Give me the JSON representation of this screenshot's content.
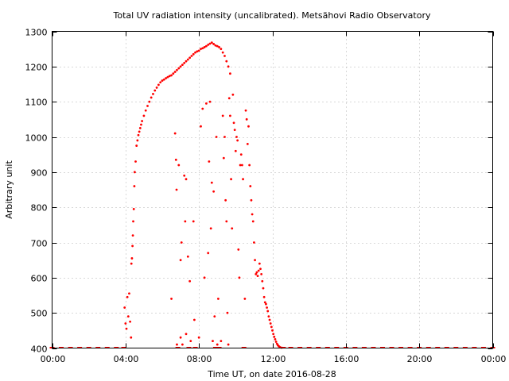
{
  "chart_data": {
    "type": "scatter",
    "title": "Total UV radiation intensity (uncalibrated). Metsähovi Radio Observatory",
    "xlabel": "Time UT, on date 2016-08-28",
    "ylabel": "Arbitrary unit",
    "xlim": [
      0,
      24
    ],
    "ylim": [
      400,
      1300
    ],
    "xticks": [
      0,
      4,
      8,
      12,
      16,
      20,
      24
    ],
    "xtick_labels": [
      "00:00",
      "04:00",
      "08:00",
      "12:00",
      "16:00",
      "20:00",
      "00:00"
    ],
    "yticks": [
      400,
      500,
      600,
      700,
      800,
      900,
      1000,
      1100,
      1200,
      1300
    ],
    "ytick_labels": [
      "400",
      "500",
      "600",
      "700",
      "800",
      "900",
      "1000",
      "1100",
      "1200",
      "1300"
    ],
    "grid": true,
    "color": "#ff0000",
    "x_unit": "hours UT",
    "series": [
      {
        "name": "",
        "points": [
          [
            0.0,
            400
          ],
          [
            0.5,
            400
          ],
          [
            1.0,
            400
          ],
          [
            1.5,
            400
          ],
          [
            2.0,
            400
          ],
          [
            2.5,
            400
          ],
          [
            3.0,
            400
          ],
          [
            3.5,
            400
          ],
          [
            3.9,
            400
          ],
          [
            3.95,
            515
          ],
          [
            4.0,
            470
          ],
          [
            4.05,
            455
          ],
          [
            4.1,
            545
          ],
          [
            4.15,
            490
          ],
          [
            4.2,
            555
          ],
          [
            4.25,
            475
          ],
          [
            4.3,
            430
          ],
          [
            4.32,
            640
          ],
          [
            4.35,
            655
          ],
          [
            4.38,
            690
          ],
          [
            4.4,
            720
          ],
          [
            4.42,
            760
          ],
          [
            4.45,
            795
          ],
          [
            4.48,
            860
          ],
          [
            4.5,
            900
          ],
          [
            4.55,
            930
          ],
          [
            4.6,
            975
          ],
          [
            4.65,
            990
          ],
          [
            4.7,
            1005
          ],
          [
            4.75,
            1015
          ],
          [
            4.8,
            1025
          ],
          [
            4.85,
            1035
          ],
          [
            4.9,
            1045
          ],
          [
            5.0,
            1060
          ],
          [
            5.1,
            1075
          ],
          [
            5.2,
            1088
          ],
          [
            5.3,
            1100
          ],
          [
            5.4,
            1112
          ],
          [
            5.5,
            1122
          ],
          [
            5.6,
            1132
          ],
          [
            5.7,
            1140
          ],
          [
            5.8,
            1148
          ],
          [
            5.9,
            1155
          ],
          [
            6.0,
            1160
          ],
          [
            6.1,
            1163
          ],
          [
            6.2,
            1167
          ],
          [
            6.3,
            1170
          ],
          [
            6.4,
            1173
          ],
          [
            6.5,
            1175
          ],
          [
            6.6,
            1180
          ],
          [
            6.7,
            1185
          ],
          [
            6.8,
            1190
          ],
          [
            6.9,
            1195
          ],
          [
            7.0,
            1200
          ],
          [
            7.1,
            1205
          ],
          [
            7.2,
            1210
          ],
          [
            7.3,
            1215
          ],
          [
            7.4,
            1220
          ],
          [
            7.5,
            1225
          ],
          [
            7.6,
            1230
          ],
          [
            7.7,
            1235
          ],
          [
            7.8,
            1240
          ],
          [
            7.9,
            1243
          ],
          [
            8.0,
            1245
          ],
          [
            8.1,
            1250
          ],
          [
            8.2,
            1252
          ],
          [
            8.3,
            1255
          ],
          [
            8.4,
            1258
          ],
          [
            8.5,
            1262
          ],
          [
            8.6,
            1265
          ],
          [
            8.7,
            1268
          ],
          [
            8.8,
            1264
          ],
          [
            8.9,
            1260
          ],
          [
            9.0,
            1258
          ],
          [
            9.1,
            1255
          ],
          [
            9.2,
            1250
          ],
          [
            9.3,
            1240
          ],
          [
            9.4,
            1230
          ],
          [
            9.5,
            1215
          ],
          [
            9.6,
            1200
          ],
          [
            9.7,
            1180
          ],
          [
            6.5,
            540
          ],
          [
            6.7,
            1010
          ],
          [
            6.75,
            935
          ],
          [
            6.78,
            850
          ],
          [
            6.8,
            410
          ],
          [
            6.85,
            400
          ],
          [
            6.9,
            920
          ],
          [
            7.0,
            650
          ],
          [
            7.0,
            430
          ],
          [
            7.05,
            700
          ],
          [
            7.1,
            410
          ],
          [
            7.2,
            890
          ],
          [
            7.25,
            760
          ],
          [
            7.3,
            880
          ],
          [
            7.3,
            440
          ],
          [
            7.4,
            660
          ],
          [
            7.45,
            400
          ],
          [
            7.5,
            590
          ],
          [
            7.55,
            420
          ],
          [
            7.7,
            760
          ],
          [
            7.75,
            480
          ],
          [
            7.8,
            400
          ],
          [
            8.0,
            430
          ],
          [
            8.1,
            1030
          ],
          [
            8.2,
            1080
          ],
          [
            8.3,
            600
          ],
          [
            8.4,
            1095
          ],
          [
            8.5,
            670
          ],
          [
            8.55,
            930
          ],
          [
            8.6,
            1100
          ],
          [
            8.65,
            740
          ],
          [
            8.7,
            870
          ],
          [
            8.75,
            420
          ],
          [
            8.8,
            845
          ],
          [
            8.85,
            490
          ],
          [
            8.9,
            400
          ],
          [
            8.95,
            1000
          ],
          [
            9.0,
            410
          ],
          [
            9.05,
            540
          ],
          [
            9.1,
            400
          ],
          [
            9.2,
            420
          ],
          [
            9.3,
            1060
          ],
          [
            9.35,
            940
          ],
          [
            9.4,
            1000
          ],
          [
            9.45,
            820
          ],
          [
            9.5,
            760
          ],
          [
            9.55,
            500
          ],
          [
            9.6,
            410
          ],
          [
            9.65,
            1110
          ],
          [
            9.7,
            1060
          ],
          [
            9.75,
            880
          ],
          [
            9.8,
            740
          ],
          [
            9.85,
            1120
          ],
          [
            9.9,
            1040
          ],
          [
            9.95,
            1020
          ],
          [
            10.0,
            960
          ],
          [
            10.05,
            1000
          ],
          [
            10.1,
            990
          ],
          [
            10.15,
            680
          ],
          [
            10.2,
            600
          ],
          [
            10.25,
            920
          ],
          [
            10.3,
            950
          ],
          [
            10.35,
            920
          ],
          [
            10.4,
            880
          ],
          [
            10.45,
            400
          ],
          [
            10.5,
            540
          ],
          [
            10.55,
            1075
          ],
          [
            10.6,
            1050
          ],
          [
            10.65,
            980
          ],
          [
            10.7,
            1030
          ],
          [
            10.75,
            920
          ],
          [
            10.8,
            860
          ],
          [
            10.85,
            820
          ],
          [
            10.9,
            780
          ],
          [
            10.95,
            760
          ],
          [
            11.0,
            700
          ],
          [
            11.05,
            650
          ],
          [
            11.1,
            610
          ],
          [
            11.15,
            615
          ],
          [
            11.2,
            605
          ],
          [
            11.25,
            620
          ],
          [
            11.3,
            640
          ],
          [
            11.35,
            625
          ],
          [
            11.4,
            610
          ],
          [
            11.45,
            590
          ],
          [
            11.5,
            570
          ],
          [
            11.55,
            545
          ],
          [
            11.6,
            530
          ],
          [
            11.65,
            525
          ],
          [
            11.7,
            515
          ],
          [
            11.75,
            505
          ],
          [
            11.8,
            490
          ],
          [
            11.85,
            480
          ],
          [
            11.9,
            470
          ],
          [
            11.95,
            460
          ],
          [
            12.0,
            450
          ],
          [
            12.05,
            440
          ],
          [
            12.1,
            432
          ],
          [
            12.15,
            425
          ],
          [
            12.2,
            418
          ],
          [
            12.25,
            412
          ],
          [
            12.3,
            408
          ],
          [
            12.35,
            405
          ],
          [
            12.4,
            403
          ],
          [
            12.5,
            401
          ],
          [
            12.6,
            400
          ],
          [
            13.0,
            400
          ],
          [
            13.5,
            400
          ],
          [
            14.0,
            400
          ],
          [
            14.5,
            400
          ],
          [
            15.0,
            400
          ],
          [
            15.5,
            400
          ],
          [
            16.0,
            400
          ],
          [
            16.5,
            400
          ],
          [
            17.0,
            400
          ],
          [
            17.5,
            400
          ],
          [
            18.0,
            400
          ],
          [
            18.5,
            400
          ],
          [
            19.0,
            400
          ],
          [
            19.5,
            400
          ],
          [
            20.0,
            400
          ],
          [
            20.5,
            400
          ],
          [
            21.0,
            400
          ],
          [
            21.5,
            400
          ],
          [
            22.0,
            400
          ],
          [
            22.5,
            400
          ],
          [
            23.0,
            400
          ],
          [
            23.5,
            400
          ],
          [
            24.0,
            400
          ]
        ]
      }
    ]
  }
}
